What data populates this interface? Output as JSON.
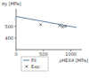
{
  "chart_data": {
    "type": "line",
    "y_label": "σy [MPa]",
    "x_label": "ρHEXA [MPa]",
    "xlim": [
      0,
      1200
    ],
    "xticks": [
      0,
      500,
      1000
    ],
    "ylim": [
      300,
      650
    ],
    "yticks": [
      400,
      500
    ],
    "grid": false,
    "legend": "bottom",
    "series": [
      {
        "name": "Fit",
        "type": "line",
        "color": "#5b7fa6",
        "line_style": "solid",
        "x": [
          0,
          1100
        ],
        "values": [
          585,
          490
        ]
      },
      {
        "name": "Exp.",
        "type": "scatter",
        "color": "#333333",
        "marker": "x",
        "x": [
          450,
          800,
          850,
          900
        ],
        "values": [
          515,
          505,
          495,
          500
        ]
      }
    ]
  }
}
